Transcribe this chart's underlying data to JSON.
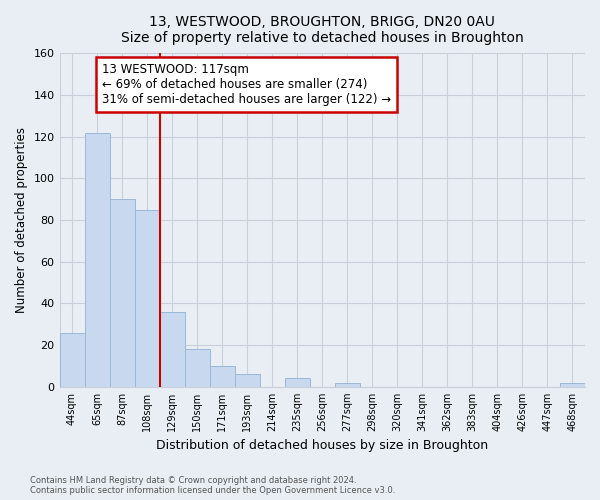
{
  "title": "13, WESTWOOD, BROUGHTON, BRIGG, DN20 0AU",
  "subtitle": "Size of property relative to detached houses in Broughton",
  "xlabel": "Distribution of detached houses by size in Broughton",
  "ylabel": "Number of detached properties",
  "bin_labels": [
    "44sqm",
    "65sqm",
    "87sqm",
    "108sqm",
    "129sqm",
    "150sqm",
    "171sqm",
    "193sqm",
    "214sqm",
    "235sqm",
    "256sqm",
    "277sqm",
    "298sqm",
    "320sqm",
    "341sqm",
    "362sqm",
    "383sqm",
    "404sqm",
    "426sqm",
    "447sqm",
    "468sqm"
  ],
  "bar_values": [
    26,
    122,
    90,
    85,
    36,
    18,
    10,
    6,
    0,
    4,
    0,
    2,
    0,
    0,
    0,
    0,
    0,
    0,
    0,
    0,
    2
  ],
  "bar_color": "#c8d8ee",
  "bar_edge_color": "#9ab8d8",
  "ylim": [
    0,
    160
  ],
  "yticks": [
    0,
    20,
    40,
    60,
    80,
    100,
    120,
    140,
    160
  ],
  "vline_x_index": 3.5,
  "vline_color": "#cc0000",
  "annotation_text": "13 WESTWOOD: 117sqm\n← 69% of detached houses are smaller (274)\n31% of semi-detached houses are larger (122) →",
  "annotation_box_color": "#ffffff",
  "annotation_box_edge_color": "#cc0000",
  "footer_text": "Contains HM Land Registry data © Crown copyright and database right 2024.\nContains public sector information licensed under the Open Government Licence v3.0.",
  "fig_background_color": "#e8eef4",
  "plot_background_color": "#e8eef4",
  "grid_color": "#c8d0dc"
}
